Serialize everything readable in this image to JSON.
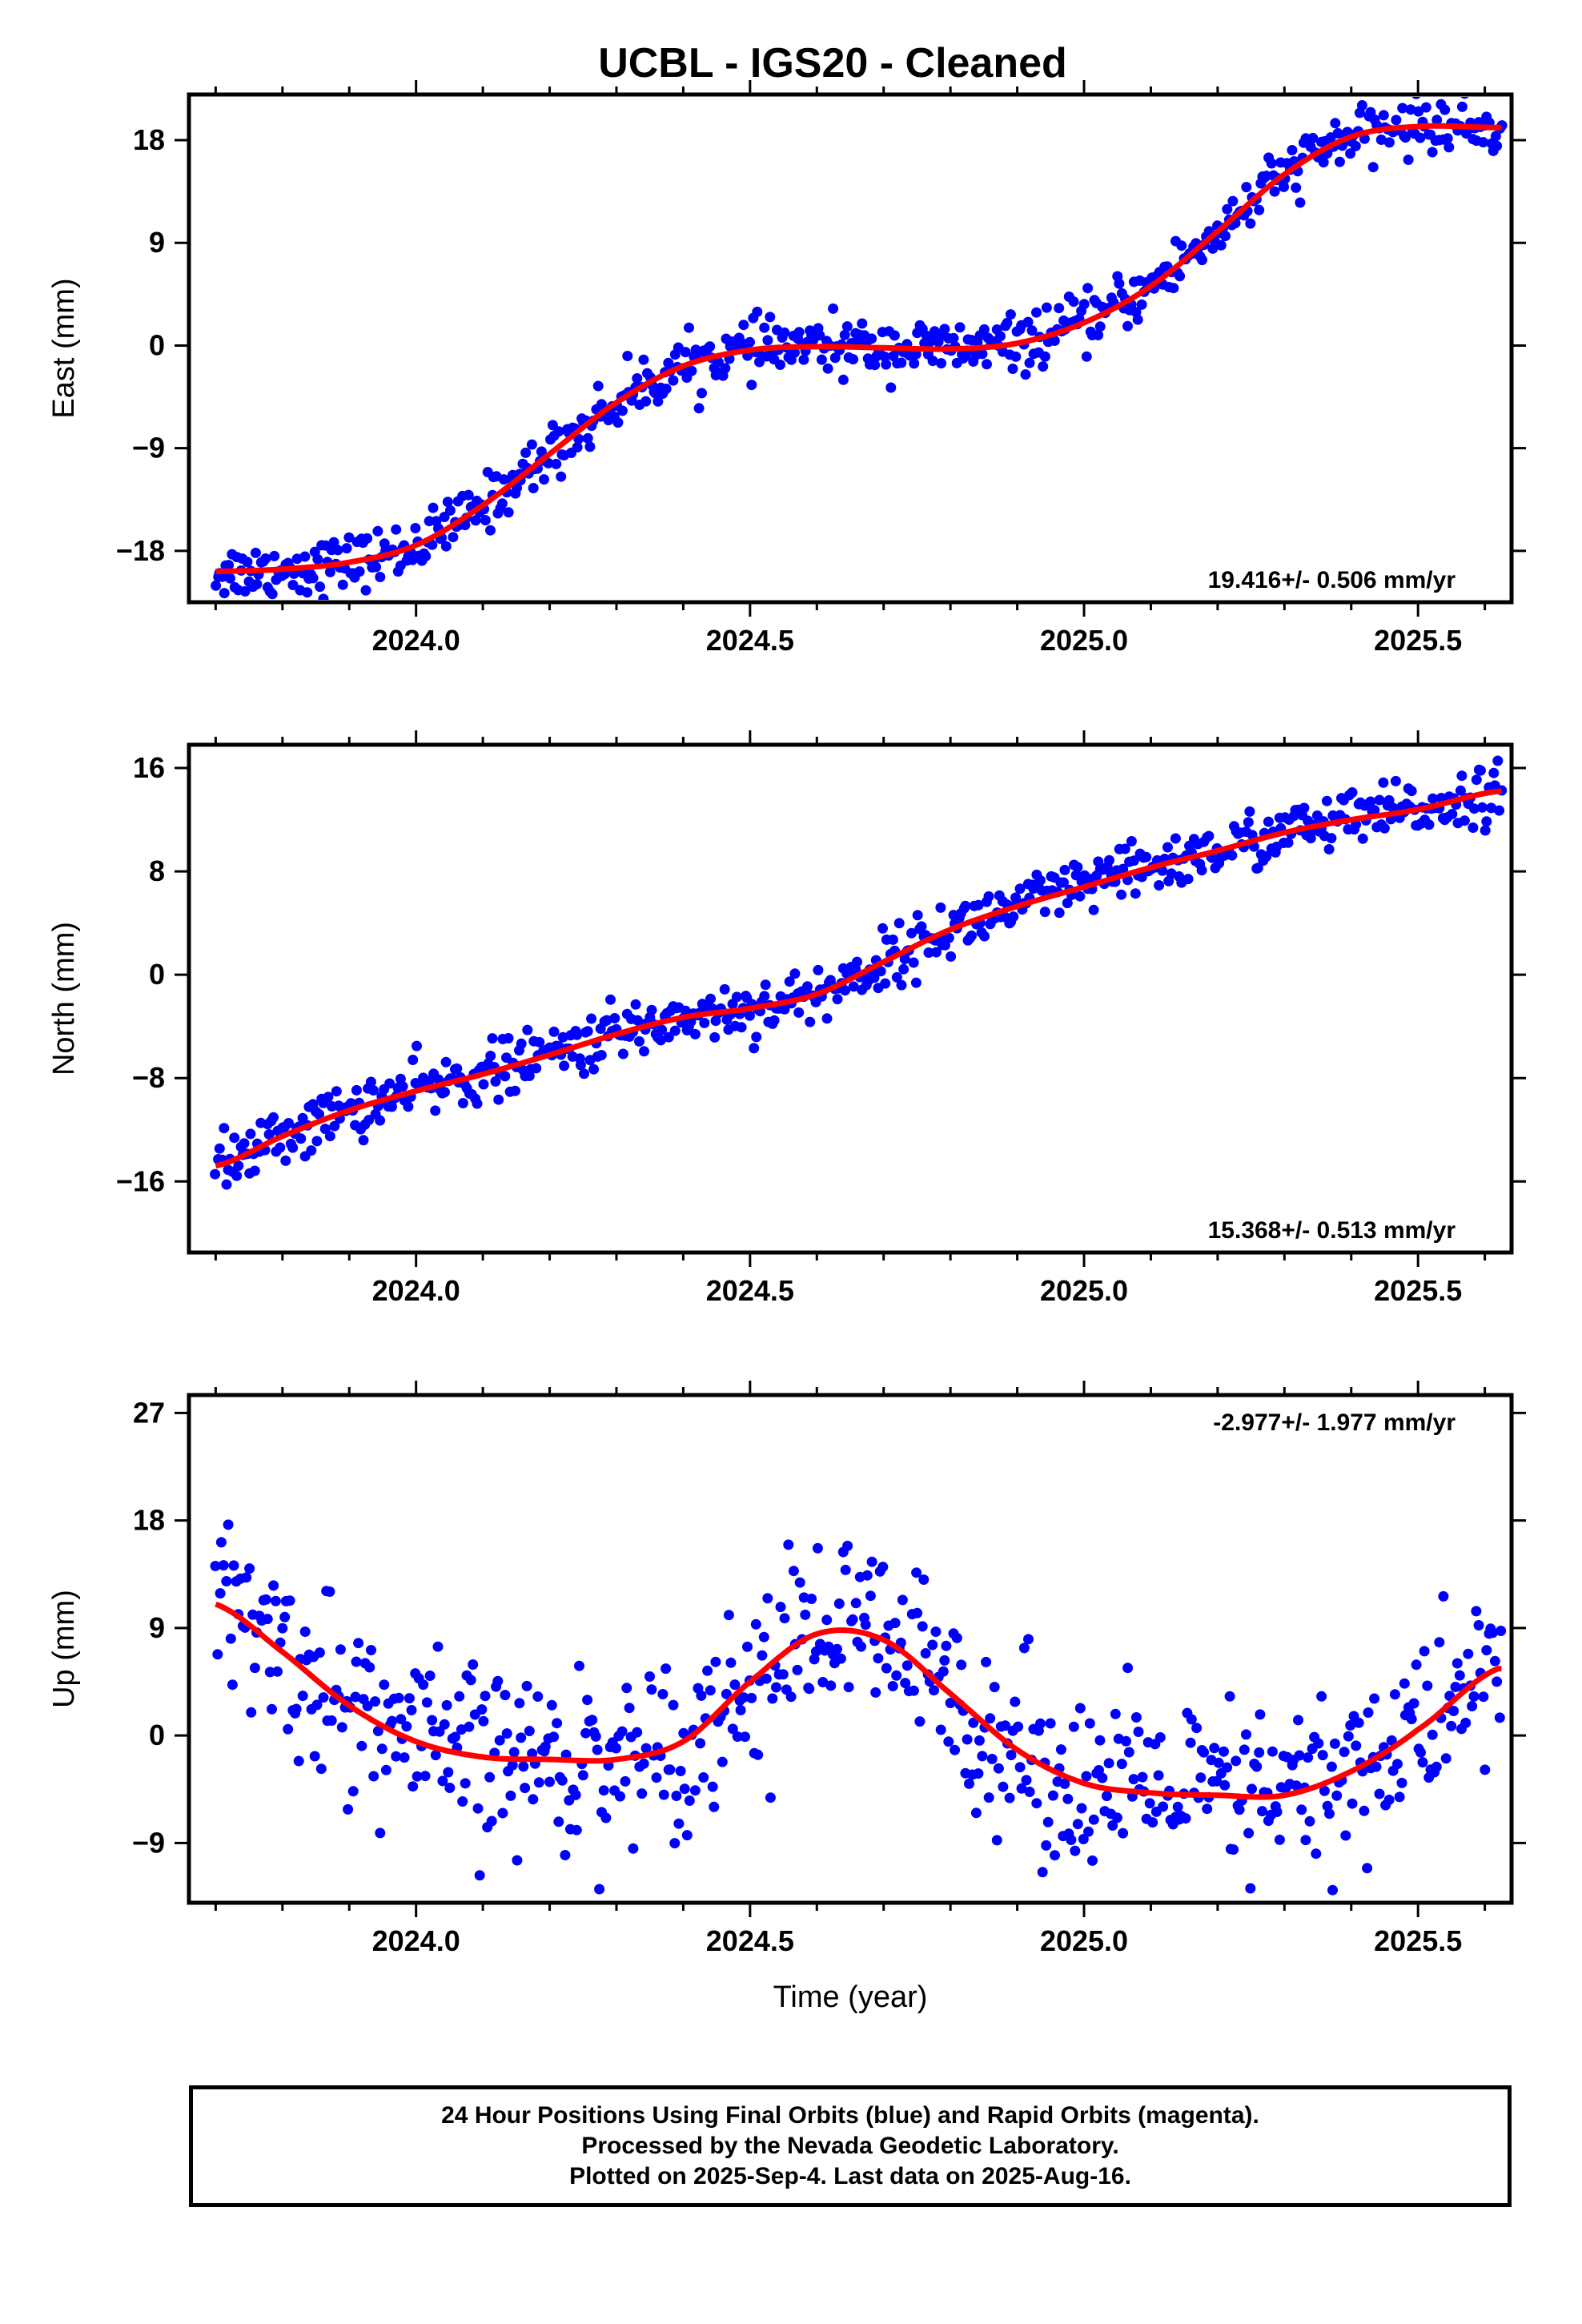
{
  "title": "UCBL  - IGS20 - Cleaned",
  "footer": {
    "lines": [
      "24 Hour Positions Using Final Orbits (blue) and Rapid Orbits (magenta).",
      "Processed by the Nevada Geodetic Laboratory.",
      "Plotted on 2025-Sep-4. Last data on 2025-Aug-16."
    ]
  },
  "colors": {
    "data": "#0000ff",
    "fit": "#ff0000",
    "frame": "#000000"
  },
  "chart_data": [
    {
      "type": "scatter",
      "ylabel": "East (mm)",
      "xlabel": "",
      "xlim": [
        2023.66,
        2025.64
      ],
      "ylim": [
        -22.5,
        22
      ],
      "x_ticks": [
        2024.0,
        2024.5,
        2025.0,
        2025.5
      ],
      "x_tick_labels": [
        "2024.0",
        "2024.5",
        "2025.0",
        "2025.5"
      ],
      "y_ticks": [
        -18,
        -9,
        0,
        9,
        18
      ],
      "y_tick_labels": [
        "−18",
        "−9",
        "0",
        "9",
        "18"
      ],
      "rate_label": "19.416+/- 0.506 mm/yr",
      "rate_position": "bottom-right",
      "noise_mm": 1.2,
      "fit_curve": {
        "x": [
          2023.7,
          2023.8,
          2023.9,
          2024.0,
          2024.1,
          2024.2,
          2024.3,
          2024.4,
          2024.5,
          2024.6,
          2024.7,
          2024.8,
          2024.9,
          2025.0,
          2025.1,
          2025.2,
          2025.3,
          2025.4,
          2025.5,
          2025.62
        ],
        "y": [
          -19.8,
          -19.6,
          -19.0,
          -17.5,
          -14.0,
          -9.5,
          -5.0,
          -1.8,
          -0.4,
          -0.1,
          -0.2,
          -0.3,
          0.2,
          2.0,
          5.2,
          10.0,
          15.0,
          18.3,
          19.2,
          19.1
        ]
      }
    },
    {
      "type": "scatter",
      "ylabel": "North (mm)",
      "xlabel": "",
      "xlim": [
        2023.66,
        2025.64
      ],
      "ylim": [
        -21.5,
        17.8
      ],
      "x_ticks": [
        2024.0,
        2024.5,
        2025.0,
        2025.5
      ],
      "x_tick_labels": [
        "2024.0",
        "2024.5",
        "2025.0",
        "2025.5"
      ],
      "y_ticks": [
        -16,
        -8,
        0,
        8,
        16
      ],
      "y_tick_labels": [
        "−16",
        "−8",
        "0",
        "8",
        "16"
      ],
      "rate_label": "15.368+/- 0.513 mm/yr",
      "rate_position": "bottom-right",
      "noise_mm": 1.1,
      "fit_curve": {
        "x": [
          2023.7,
          2023.8,
          2023.9,
          2024.0,
          2024.1,
          2024.2,
          2024.3,
          2024.4,
          2024.5,
          2024.6,
          2024.7,
          2024.8,
          2024.9,
          2025.0,
          2025.1,
          2025.2,
          2025.3,
          2025.4,
          2025.5,
          2025.62
        ],
        "y": [
          -14.8,
          -12.5,
          -10.5,
          -9.0,
          -7.7,
          -6.2,
          -4.6,
          -3.3,
          -2.6,
          -1.5,
          1.0,
          3.5,
          5.3,
          6.8,
          8.3,
          9.6,
          11.0,
          12.0,
          12.8,
          14.2
        ]
      }
    },
    {
      "type": "scatter",
      "ylabel": "Up (mm)",
      "xlabel": "Time (year)",
      "xlim": [
        2023.66,
        2025.64
      ],
      "ylim": [
        -14,
        28.5
      ],
      "x_ticks": [
        2024.0,
        2024.5,
        2025.0,
        2025.5
      ],
      "x_tick_labels": [
        "2024.0",
        "2024.5",
        "2025.0",
        "2025.5"
      ],
      "y_ticks": [
        -9,
        0,
        9,
        18,
        27
      ],
      "y_tick_labels": [
        "−9",
        "0",
        "9",
        "18",
        "27"
      ],
      "rate_label": "-2.977+/- 1.977 mm/yr",
      "rate_position": "top-right",
      "noise_mm": 3.8,
      "fit_curve": {
        "x": [
          2023.7,
          2023.8,
          2023.9,
          2024.0,
          2024.1,
          2024.2,
          2024.3,
          2024.4,
          2024.5,
          2024.6,
          2024.7,
          2024.8,
          2024.9,
          2025.0,
          2025.1,
          2025.2,
          2025.3,
          2025.4,
          2025.5,
          2025.62
        ],
        "y": [
          11.0,
          7.0,
          2.5,
          -0.5,
          -1.8,
          -2.0,
          -2.0,
          -0.5,
          4.5,
          8.5,
          8.0,
          3.5,
          -1.2,
          -4.0,
          -4.8,
          -5.0,
          -5.0,
          -3.0,
          0.5,
          5.6
        ]
      }
    }
  ]
}
